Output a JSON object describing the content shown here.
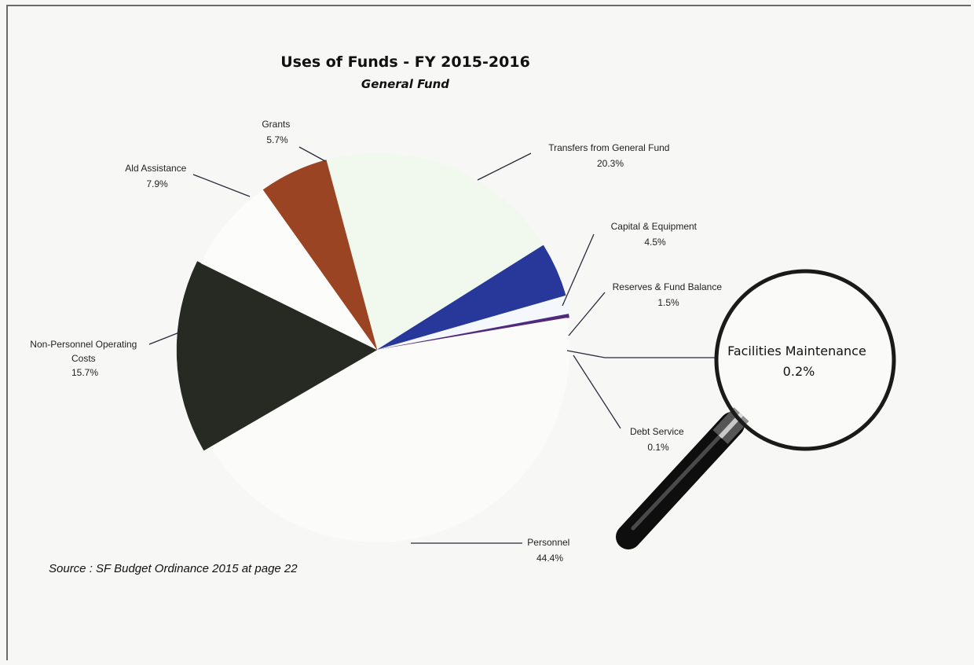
{
  "chart_data": {
    "type": "pie",
    "title": "Uses of Funds - FY 2015-2016",
    "subtitle": "General Fund",
    "slices": [
      {
        "name": "Transfers from General Fund",
        "value": 20.3,
        "value_label": "20.3%",
        "color": "#f1f9ee"
      },
      {
        "name": "Capital & Equipment",
        "value": 4.5,
        "value_label": "4.5%",
        "color": "#27389a"
      },
      {
        "name": "Reserves & Fund Balance",
        "value": 1.5,
        "value_label": "1.5%",
        "color": "#f4f7fb"
      },
      {
        "name": "Facilities Maintenance",
        "value": 0.2,
        "value_label": "0.2%",
        "color": "#4b2a86"
      },
      {
        "name": "Debt Service",
        "value": 0.1,
        "value_label": "0.1%",
        "color": "#5b2a5e"
      },
      {
        "name": "Personnel",
        "value": 44.4,
        "value_label": "44.4%",
        "color": "#fbfbfa"
      },
      {
        "name": "Non-Personnel Operating Costs",
        "value": 15.7,
        "value_label": "15.7%",
        "color": "#262a22"
      },
      {
        "name": "Aid Assistance",
        "value": 7.9,
        "value_label": "7.9%",
        "color": "#fcfcfb"
      },
      {
        "name": "Grants",
        "value": 5.7,
        "value_label": "5.7%",
        "color": "#9a4423"
      }
    ],
    "labels": {
      "transfers": [
        "Transfers from General Fund",
        "20.3%"
      ],
      "capital": [
        "Capital & Equipment",
        "4.5%"
      ],
      "reserves": [
        "Reserves & Fund Balance",
        "1.5%"
      ],
      "debt": [
        "Debt Service",
        "0.1%"
      ],
      "personnel": [
        "Personnel",
        "44.4%"
      ],
      "nonpersonnel": [
        "Non-Personnel Operating",
        "Costs",
        "15.7%"
      ],
      "aid": [
        "Ald Assistance",
        "7.9%"
      ],
      "grants": [
        "Grants",
        "5.7%"
      ]
    },
    "magnifier": [
      "Facilities Maintenance",
      "0.2%"
    ]
  },
  "source": "Source :  SF Budget Ordinance 2015 at page 22"
}
